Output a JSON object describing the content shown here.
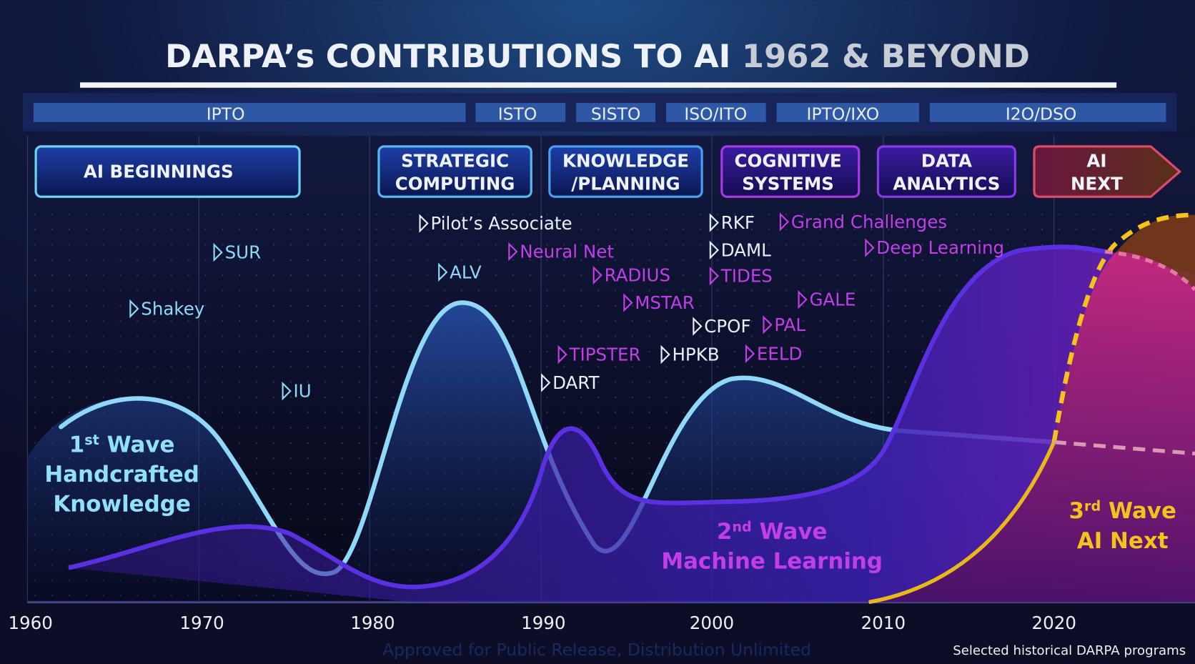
{
  "title": {
    "main": "DARPA’s CONTRIBUTIONS TO AI",
    "years": "1962 & BEYOND"
  },
  "offices": [
    "IPTO",
    "ISTO",
    "SISTO",
    "ISO/ITO",
    "IPTO/IXO",
    "I2O/DSO"
  ],
  "eras": [
    {
      "line1": "AI BEGINNINGS",
      "line2": ""
    },
    {
      "line1": "STRATEGIC",
      "line2": "COMPUTING"
    },
    {
      "line1": "KNOWLEDGE",
      "line2": "/PLANNING"
    },
    {
      "line1": "COGNITIVE",
      "line2": "SYSTEMS"
    },
    {
      "line1": "DATA",
      "line2": "ANALYTICS"
    },
    {
      "line1": "AI",
      "line2": "NEXT"
    }
  ],
  "programs": [
    "Pilot’s Associate",
    "SUR",
    "ALV",
    "Shakey",
    "IU",
    "Neural Net",
    "RADIUS",
    "MSTAR",
    "TIPSTER",
    "DART",
    "HPKB",
    "CPOF",
    "RKF",
    "DAML",
    "TIDES",
    "Grand Challenges",
    "Deep Learning",
    "GALE",
    "PAL",
    "EELD"
  ],
  "waves": {
    "first": {
      "num": "1",
      "sup": "st",
      "word": "Wave",
      "line2": "Handcrafted",
      "line3": "Knowledge"
    },
    "second": {
      "num": "2",
      "sup": "nd",
      "word": "Wave",
      "line2": "Machine Learning"
    },
    "third": {
      "num": "3",
      "sup": "rd",
      "word": "Wave",
      "line2": "AI Next"
    }
  },
  "years": [
    "1960",
    "1970",
    "1980",
    "1990",
    "2000",
    "2010",
    "2020"
  ],
  "footer": {
    "watermark": "Approved for Public Release, Distribution Unlimited",
    "note": "Selected historical DARPA programs"
  },
  "colors": {
    "cyan": "#8fd8f8",
    "magenta": "#c23ee6",
    "gold": "#f4c21a",
    "white": "#e6f0ff"
  }
}
